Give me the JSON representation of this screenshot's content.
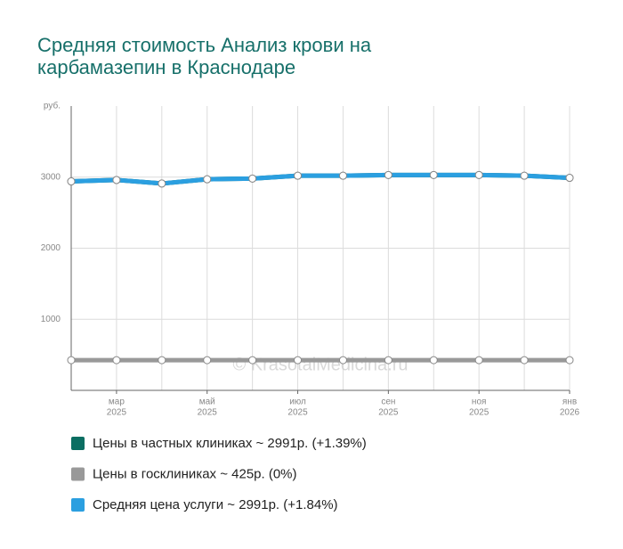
{
  "chart_data": {
    "type": "line",
    "title": [
      "Средняя стоимость Анализ крови на",
      "карбамазепин в Краснодаре"
    ],
    "y_label": "руб.",
    "watermark": "© KrasotaiMedicina.ru",
    "categories": [
      null,
      "мар",
      null,
      "май",
      null,
      "июл",
      null,
      "сен",
      null,
      "ноя",
      null,
      "янв"
    ],
    "category_years": [
      null,
      "2025",
      null,
      "2025",
      null,
      "2025",
      null,
      "2025",
      null,
      "2025",
      null,
      "2026"
    ],
    "ylim": [
      0,
      4000
    ],
    "yticks": [
      1000,
      2000,
      3000
    ],
    "grid": true,
    "series": [
      {
        "name": "Цены в частных клиниках ~ 2991р. (+1.39%)",
        "color": "#0b6e62",
        "values": [
          2940,
          2960,
          2910,
          2970,
          2980,
          3020,
          3020,
          3030,
          3030,
          3030,
          3020,
          2990
        ]
      },
      {
        "name": "Цены в госклиниках ~ 425р. (0%)",
        "color": "#999999",
        "values": [
          425,
          425,
          425,
          425,
          425,
          425,
          425,
          425,
          425,
          425,
          425,
          425
        ]
      },
      {
        "name": "Средняя цена услуги ~ 2991р. (+1.84%)",
        "color": "#2b9fe0",
        "values": [
          2940,
          2960,
          2910,
          2970,
          2980,
          3020,
          3020,
          3030,
          3030,
          3030,
          3020,
          2990
        ]
      }
    ]
  }
}
